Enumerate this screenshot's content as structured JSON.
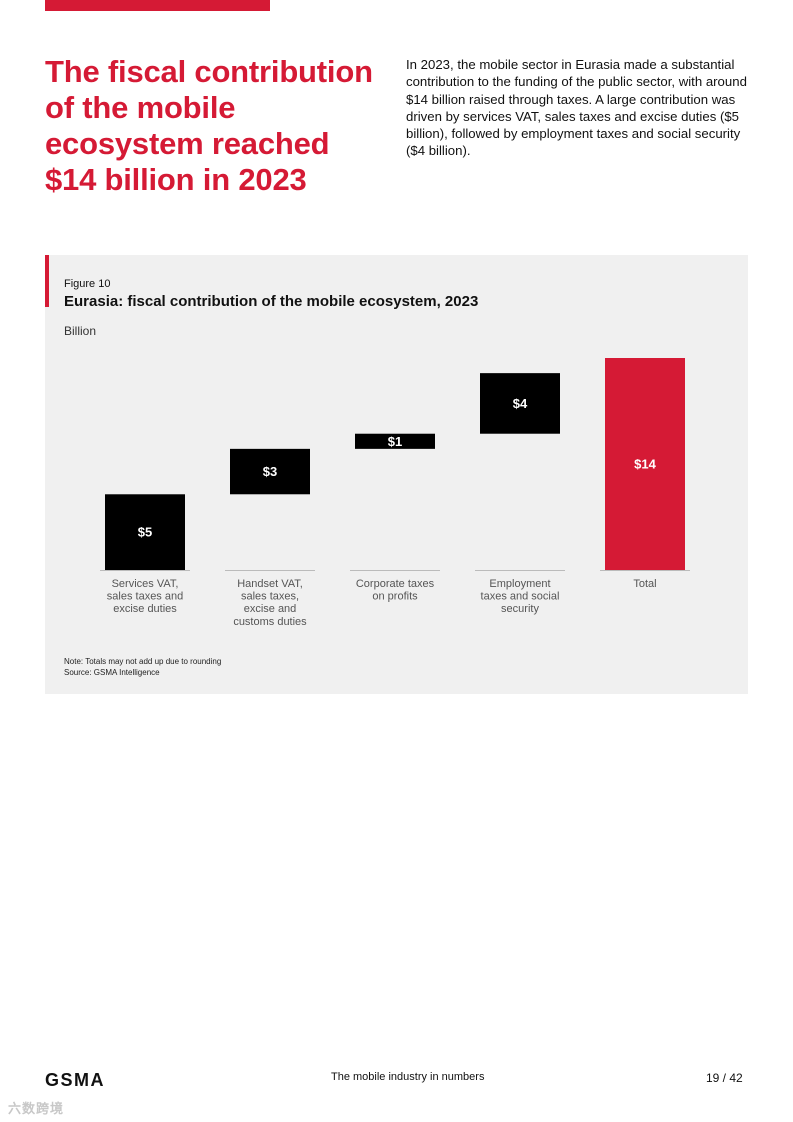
{
  "page": {
    "headline": "The fiscal contribution of the mobile ecosystem reached $14 billion in 2023",
    "intro": "In 2023, the mobile sector in Eurasia made a substantial contribution to the funding of the public sector, with around $14 billion raised through taxes. A large contribution was driven by services VAT, sales taxes and excise duties ($5 billion), followed by employment taxes and social security ($4 billion)."
  },
  "figure": {
    "label": "Figure 10",
    "title": "Eurasia: fiscal contribution of the mobile ecosystem, 2023",
    "unit": "Billion",
    "note": "Note: Totals may not add up due to rounding",
    "source": "Source: GSMA Intelligence"
  },
  "chart_data": {
    "type": "bar",
    "subtype": "waterfall",
    "categories": [
      "Services VAT, sales taxes and excise duties",
      "Handset VAT, sales taxes, excise and customs duties",
      "Corporate taxes on profits",
      "Employment taxes and social security",
      "Total"
    ],
    "category_lines": [
      [
        "Services VAT,",
        "sales taxes and",
        "excise duties"
      ],
      [
        "Handset VAT,",
        "sales taxes,",
        "excise and",
        "customs duties"
      ],
      [
        "Corporate taxes",
        "on profits"
      ],
      [
        "Employment",
        "taxes and social",
        "security"
      ],
      [
        "Total"
      ]
    ],
    "values": [
      5,
      3,
      1,
      4,
      14
    ],
    "value_labels": [
      "$5",
      "$3",
      "$1",
      "$4",
      "$14"
    ],
    "is_total": [
      false,
      false,
      false,
      false,
      true
    ],
    "ylabel": "Billion",
    "ylim": [
      0,
      14
    ],
    "grid": false,
    "colors": {
      "step": "#000000",
      "total": "#d51a35",
      "baseline": "#bbbbbb",
      "label_text": "#555555"
    }
  },
  "footer": {
    "logo": "GSMA",
    "center": "The mobile industry in numbers",
    "page": "19 / 42"
  },
  "watermark": "六数跨境"
}
